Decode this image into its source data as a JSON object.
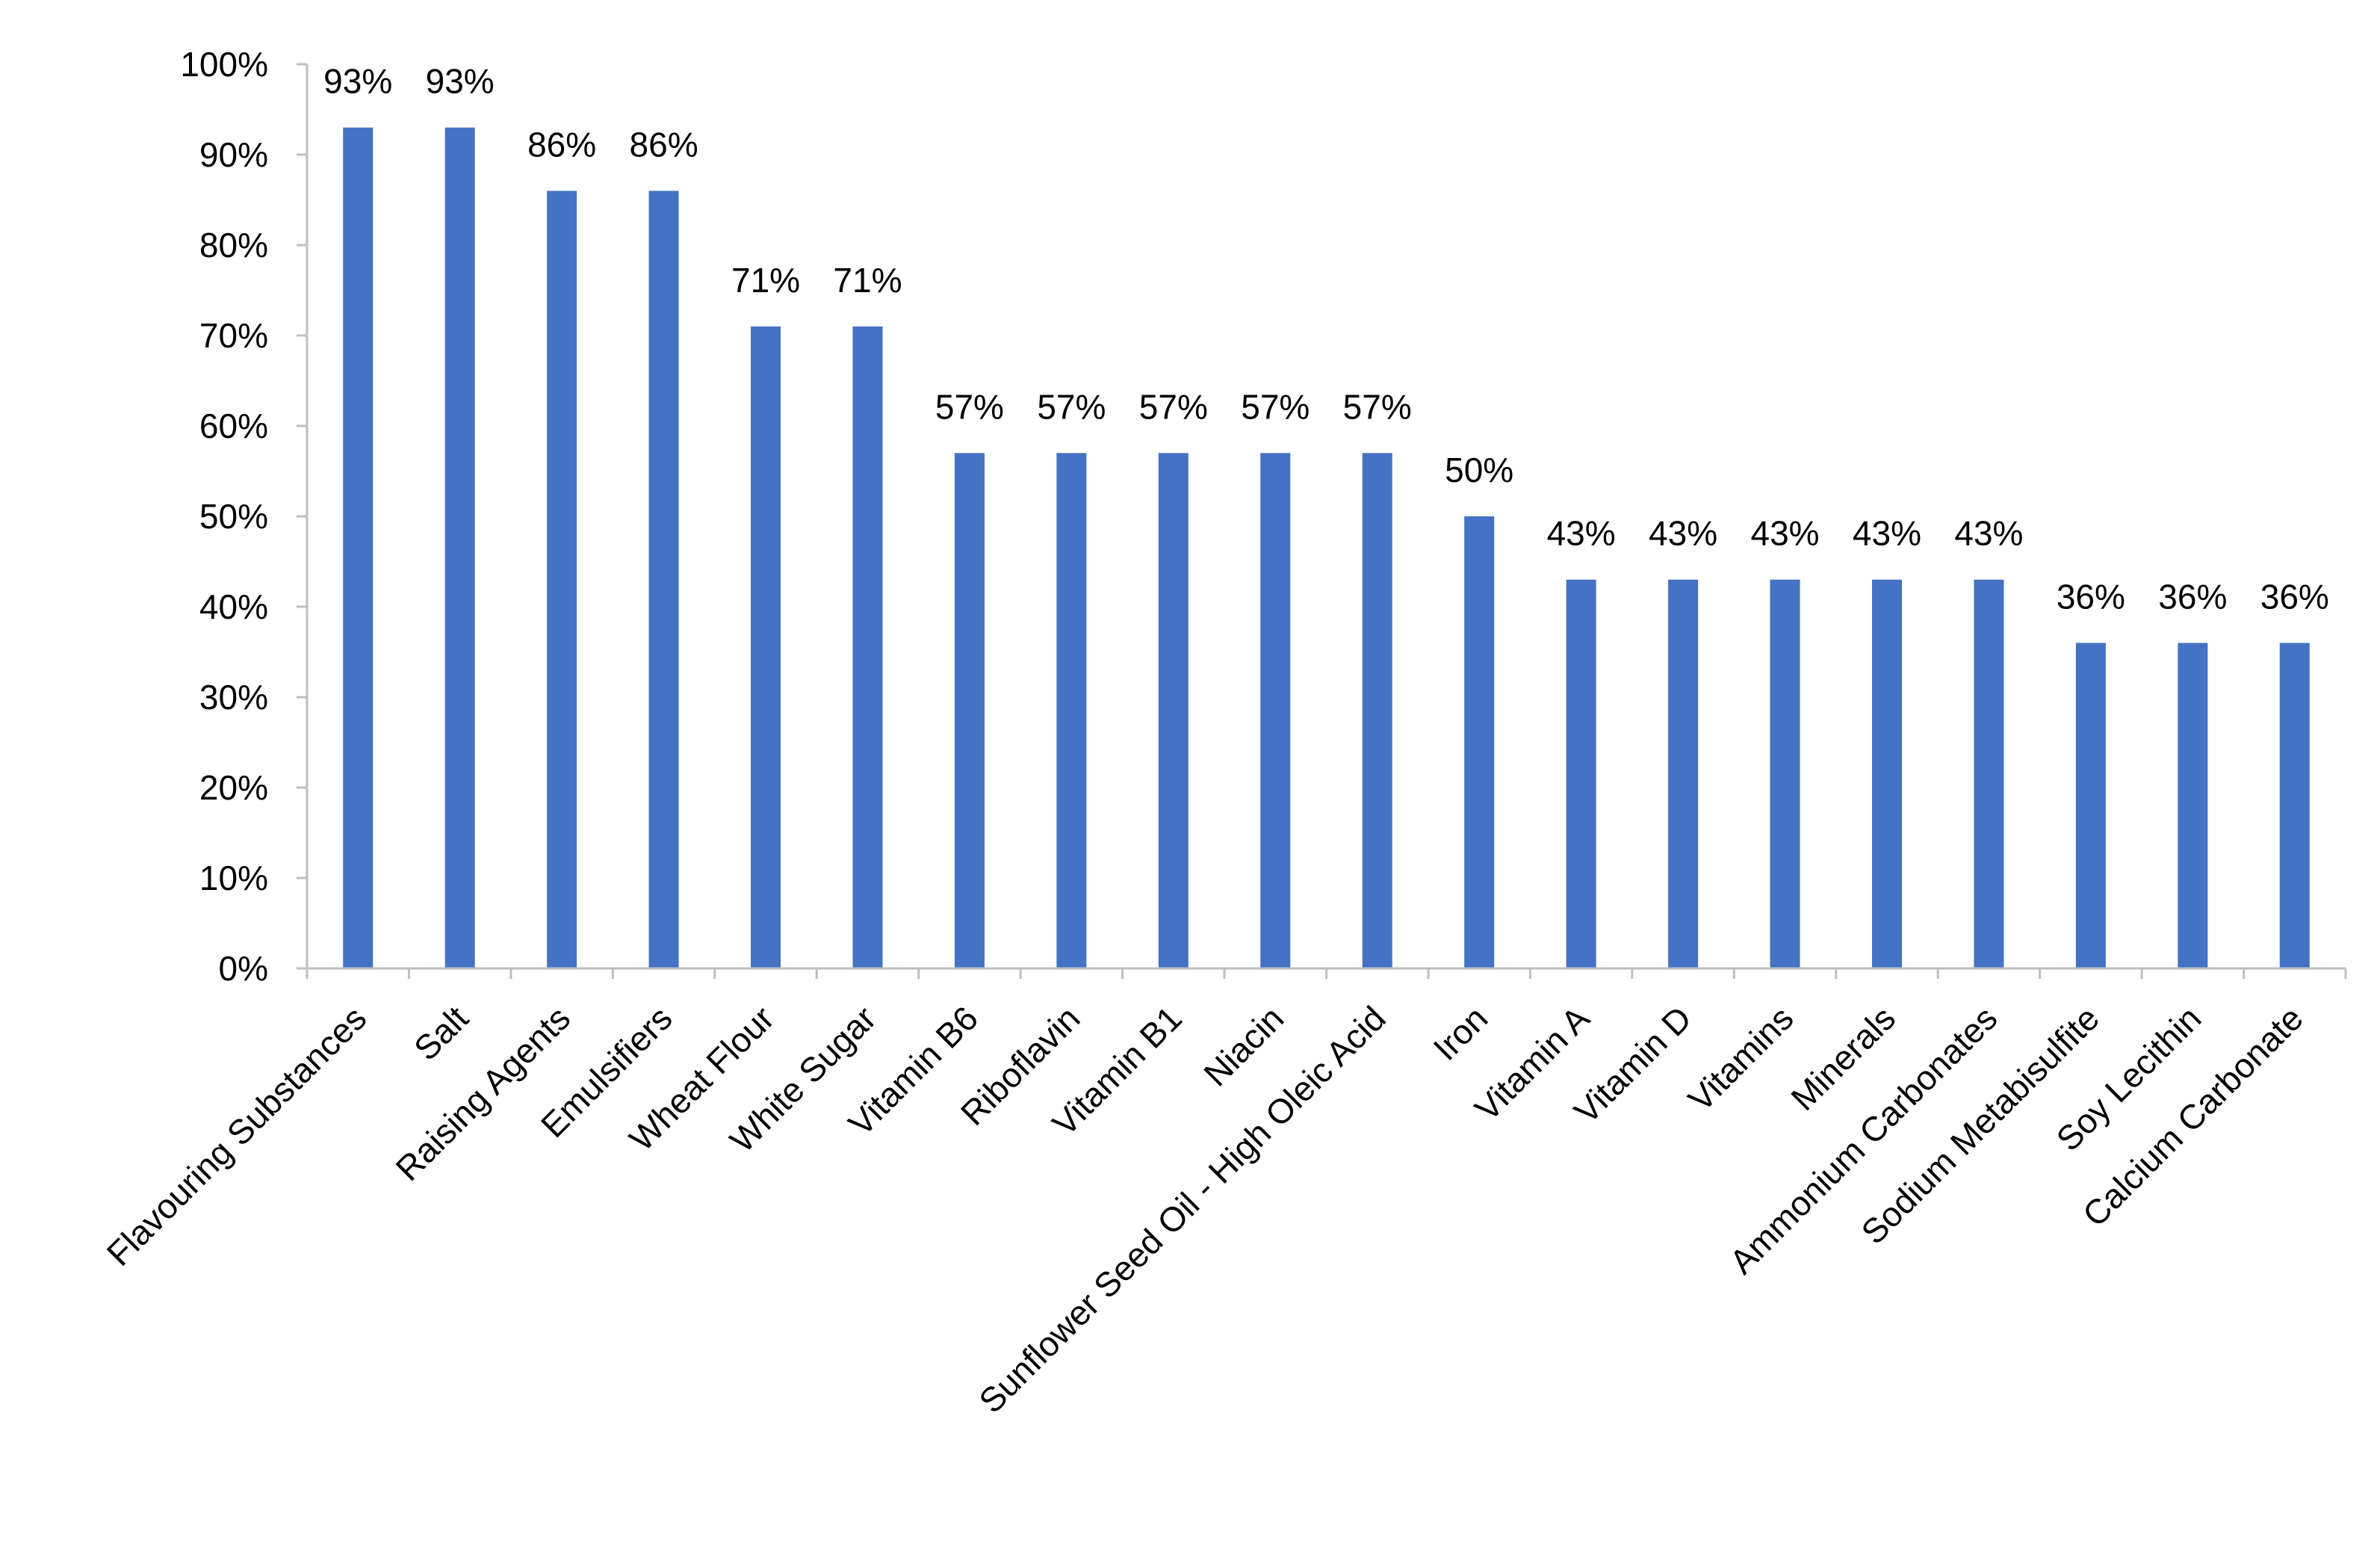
{
  "chart_data": {
    "type": "bar",
    "title": "",
    "xlabel": "",
    "ylabel": "",
    "categories": [
      "Flavouring Substances",
      "Salt",
      "Raising Agents",
      "Emulsifiers",
      "Wheat Flour",
      "White Sugar",
      "Vitamin B6",
      "Riboflavin",
      "Vitamin B1",
      "Niacin",
      "Sunflower Seed Oil - High Oleic Acid",
      "Iron",
      "Vitamin A",
      "Vitamin D",
      "Vitamins",
      "Minerals",
      "Ammonium Carbonates",
      "Sodium Metabisulfite",
      "Soy Lecithin",
      "Calcium Carbonate"
    ],
    "values": [
      93,
      93,
      86,
      86,
      71,
      71,
      57,
      57,
      57,
      57,
      57,
      50,
      43,
      43,
      43,
      43,
      43,
      36,
      36,
      36
    ],
    "data_labels": [
      "93%",
      "93%",
      "86%",
      "86%",
      "71%",
      "71%",
      "57%",
      "57%",
      "57%",
      "57%",
      "57%",
      "50%",
      "43%",
      "43%",
      "43%",
      "43%",
      "43%",
      "36%",
      "36%",
      "36%"
    ],
    "y_ticks": [
      "0%",
      "10%",
      "20%",
      "30%",
      "40%",
      "50%",
      "60%",
      "70%",
      "80%",
      "90%",
      "100%"
    ],
    "ylim": [
      0,
      100
    ],
    "grid": false,
    "legend": "none",
    "bar_color": "#4472C4",
    "axis_color": "#BFBFBF"
  }
}
